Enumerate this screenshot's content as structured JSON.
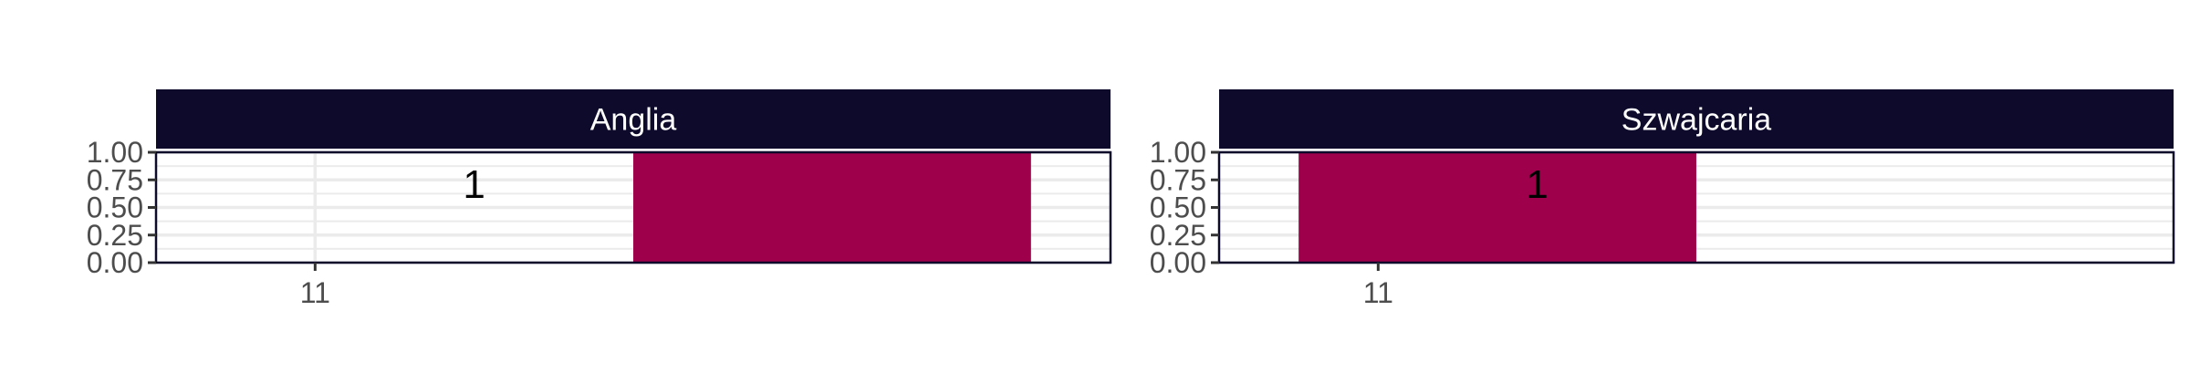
{
  "colors": {
    "strip_fill": "#0d0a2b",
    "bar_fill": "#9e004b",
    "panel_border": "#0d0a2b",
    "grid": "#ebebeb",
    "axis": "#333333"
  },
  "chart_data": [
    {
      "type": "bar",
      "facet": "Anglia",
      "x_ticks": [
        "11"
      ],
      "y_ticks": [
        "0.00",
        "0.25",
        "0.50",
        "0.75",
        "1.00"
      ],
      "ylim": [
        0,
        1
      ],
      "xlim": [
        10.5,
        13.5
      ],
      "bars": [
        {
          "x_start": 12.0,
          "x_end": 13.25,
          "value": 1.0
        }
      ],
      "labels": [
        {
          "x": 11.5,
          "y": 0.72,
          "text": "1"
        }
      ]
    },
    {
      "type": "bar",
      "facet": "Szwajcaria",
      "x_ticks": [
        "11"
      ],
      "y_ticks": [
        "0.00",
        "0.25",
        "0.50",
        "0.75",
        "1.00"
      ],
      "ylim": [
        0,
        1
      ],
      "xlim": [
        10.5,
        13.5
      ],
      "bars": [
        {
          "x_start": 10.75,
          "x_end": 12.0,
          "value": 1.0
        }
      ],
      "labels": [
        {
          "x": 11.5,
          "y": 0.72,
          "text": "1"
        }
      ]
    }
  ]
}
